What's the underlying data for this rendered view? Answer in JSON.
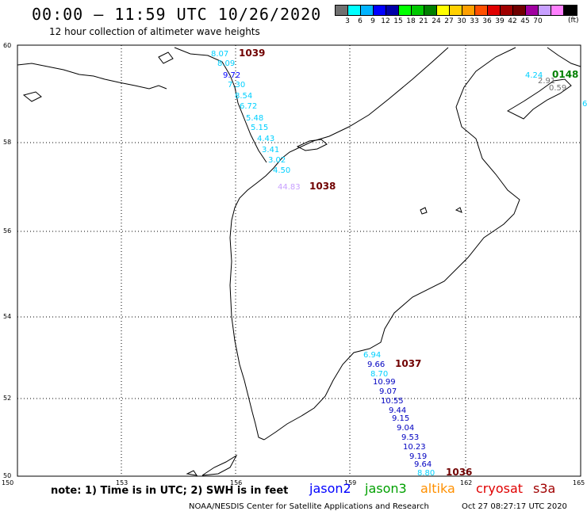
{
  "title": "00:00 – 11:59 UTC 10/26/2020",
  "subtitle": "12 hour collection of altimeter wave heights",
  "legend": {
    "unit": "(ft)",
    "colors": [
      "#707070",
      "#00ffff",
      "#00b4ff",
      "#0000ff",
      "#0000a8",
      "#00ff00",
      "#00c800",
      "#008000",
      "#ffff00",
      "#ffd000",
      "#ffa000",
      "#ff5000",
      "#e00000",
      "#a00000",
      "#700000",
      "#a000a0",
      "#c8a0ff",
      "#ff80ff",
      "#000000"
    ],
    "labels": [
      "3",
      "6",
      "9",
      "12",
      "15",
      "18",
      "21",
      "24",
      "27",
      "30",
      "33",
      "36",
      "39",
      "42",
      "45",
      "70"
    ]
  },
  "axes": {
    "lon_ticks": [
      "150",
      "153",
      "156",
      "159",
      "162",
      "165"
    ],
    "lat_ticks": [
      "60",
      "58",
      "56",
      "54",
      "52",
      "50"
    ]
  },
  "tracks": [
    {
      "pass": "1039",
      "pass_color": "#700000",
      "points": [
        {
          "v": "8.07",
          "c": "#00d0ff"
        },
        {
          "v": "8.09",
          "c": "#00d0ff"
        },
        {
          "v": "9.72",
          "c": "#0000ff"
        },
        {
          "v": "7.30",
          "c": "#00d0ff"
        },
        {
          "v": "8.54",
          "c": "#00d0ff"
        },
        {
          "v": "6.72",
          "c": "#00d0ff"
        },
        {
          "v": "5.48",
          "c": "#00d0ff"
        },
        {
          "v": "5.15",
          "c": "#00d0ff"
        },
        {
          "v": "4.43",
          "c": "#00d0ff"
        },
        {
          "v": "3.41",
          "c": "#00d0ff"
        },
        {
          "v": "3.02",
          "c": "#00d0ff"
        },
        {
          "v": "4.50",
          "c": "#00d0ff"
        },
        {
          "v": "44.83",
          "c": "#c8a0ff"
        }
      ]
    },
    {
      "pass": "1038",
      "pass_color": "#700000",
      "points": []
    },
    {
      "pass": "0148",
      "pass_color": "#008000",
      "points": [
        {
          "v": "4.24",
          "c": "#00d0ff"
        },
        {
          "v": "2.91",
          "c": "#707070"
        },
        {
          "v": "0.59",
          "c": "#707070"
        },
        {
          "v": "6",
          "c": "#00d0ff"
        }
      ]
    },
    {
      "pass": "1037",
      "pass_color": "#700000",
      "points": [
        {
          "v": "6.94",
          "c": "#00d0ff"
        },
        {
          "v": "9.66",
          "c": "#0000c0"
        },
        {
          "v": "8.70",
          "c": "#00d0ff"
        },
        {
          "v": "10.99",
          "c": "#0000c0"
        },
        {
          "v": "9.07",
          "c": "#0000c0"
        },
        {
          "v": "10.55",
          "c": "#0000c0"
        },
        {
          "v": "9.44",
          "c": "#0000c0"
        },
        {
          "v": "9.15",
          "c": "#0000c0"
        },
        {
          "v": "9.04",
          "c": "#0000c0"
        },
        {
          "v": "9.53",
          "c": "#0000c0"
        },
        {
          "v": "10.23",
          "c": "#0000c0"
        },
        {
          "v": "9.19",
          "c": "#0000c0"
        },
        {
          "v": "9.64",
          "c": "#0000c0"
        },
        {
          "v": "8.80",
          "c": "#00d0ff"
        }
      ]
    },
    {
      "pass": "1036",
      "pass_color": "#700000",
      "points": []
    }
  ],
  "note": "note: 1) Time is in UTC; 2) SWH is in feet",
  "satellites": [
    {
      "name": "jason2",
      "color": "#0000ff"
    },
    {
      "name": "jason3",
      "color": "#00a000"
    },
    {
      "name": "altika",
      "color": "#ff9000"
    },
    {
      "name": "cryosat",
      "color": "#e00000"
    },
    {
      "name": "s3a",
      "color": "#a00000"
    }
  ],
  "credit": "NOAA/NESDIS Center for Satellite Applications and Research",
  "generated": "Oct 27 08:27:17 UTC 2020"
}
